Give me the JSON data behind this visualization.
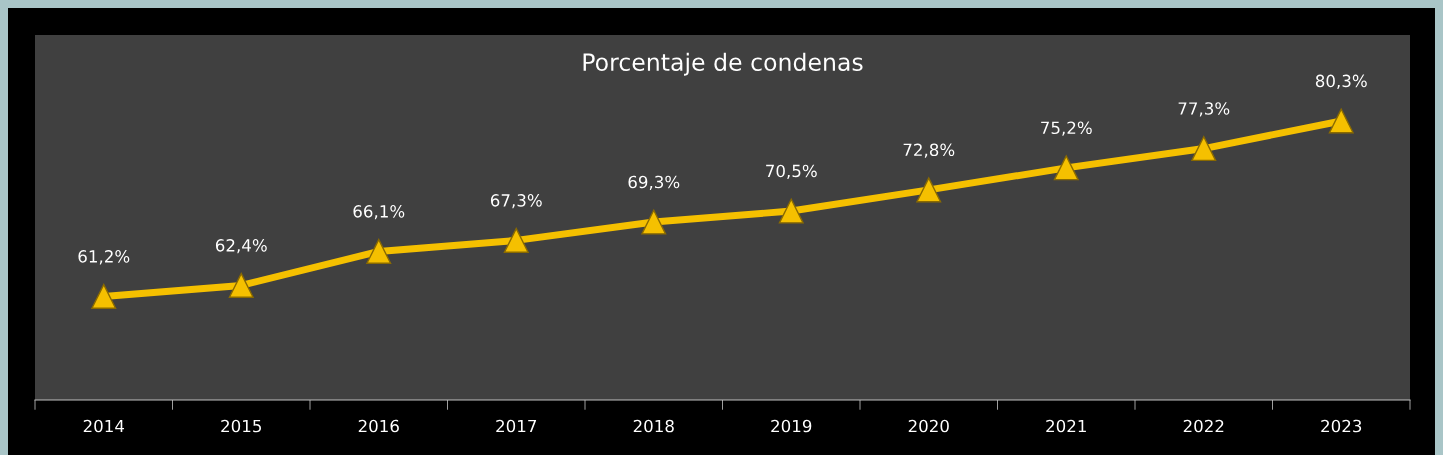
{
  "chart_data": {
    "type": "line",
    "title": "Porcentaje de condenas",
    "categories": [
      "2014",
      "2015",
      "2016",
      "2017",
      "2018",
      "2019",
      "2020",
      "2021",
      "2022",
      "2023"
    ],
    "series": [
      {
        "color": "#f5c000",
        "values": [
          61.2,
          62.4,
          66.1,
          67.3,
          69.3,
          70.5,
          72.8,
          75.2,
          77.3,
          80.3
        ],
        "value_labels": [
          "61,2%",
          "62,4%",
          "66,1%",
          "67,3%",
          "69,3%",
          "70,5%",
          "72,8%",
          "75,2%",
          "77,3%",
          "80,3%"
        ]
      }
    ],
    "marker": "triangle",
    "line_style": "solid",
    "grid": false,
    "tick_labels": "x"
  }
}
